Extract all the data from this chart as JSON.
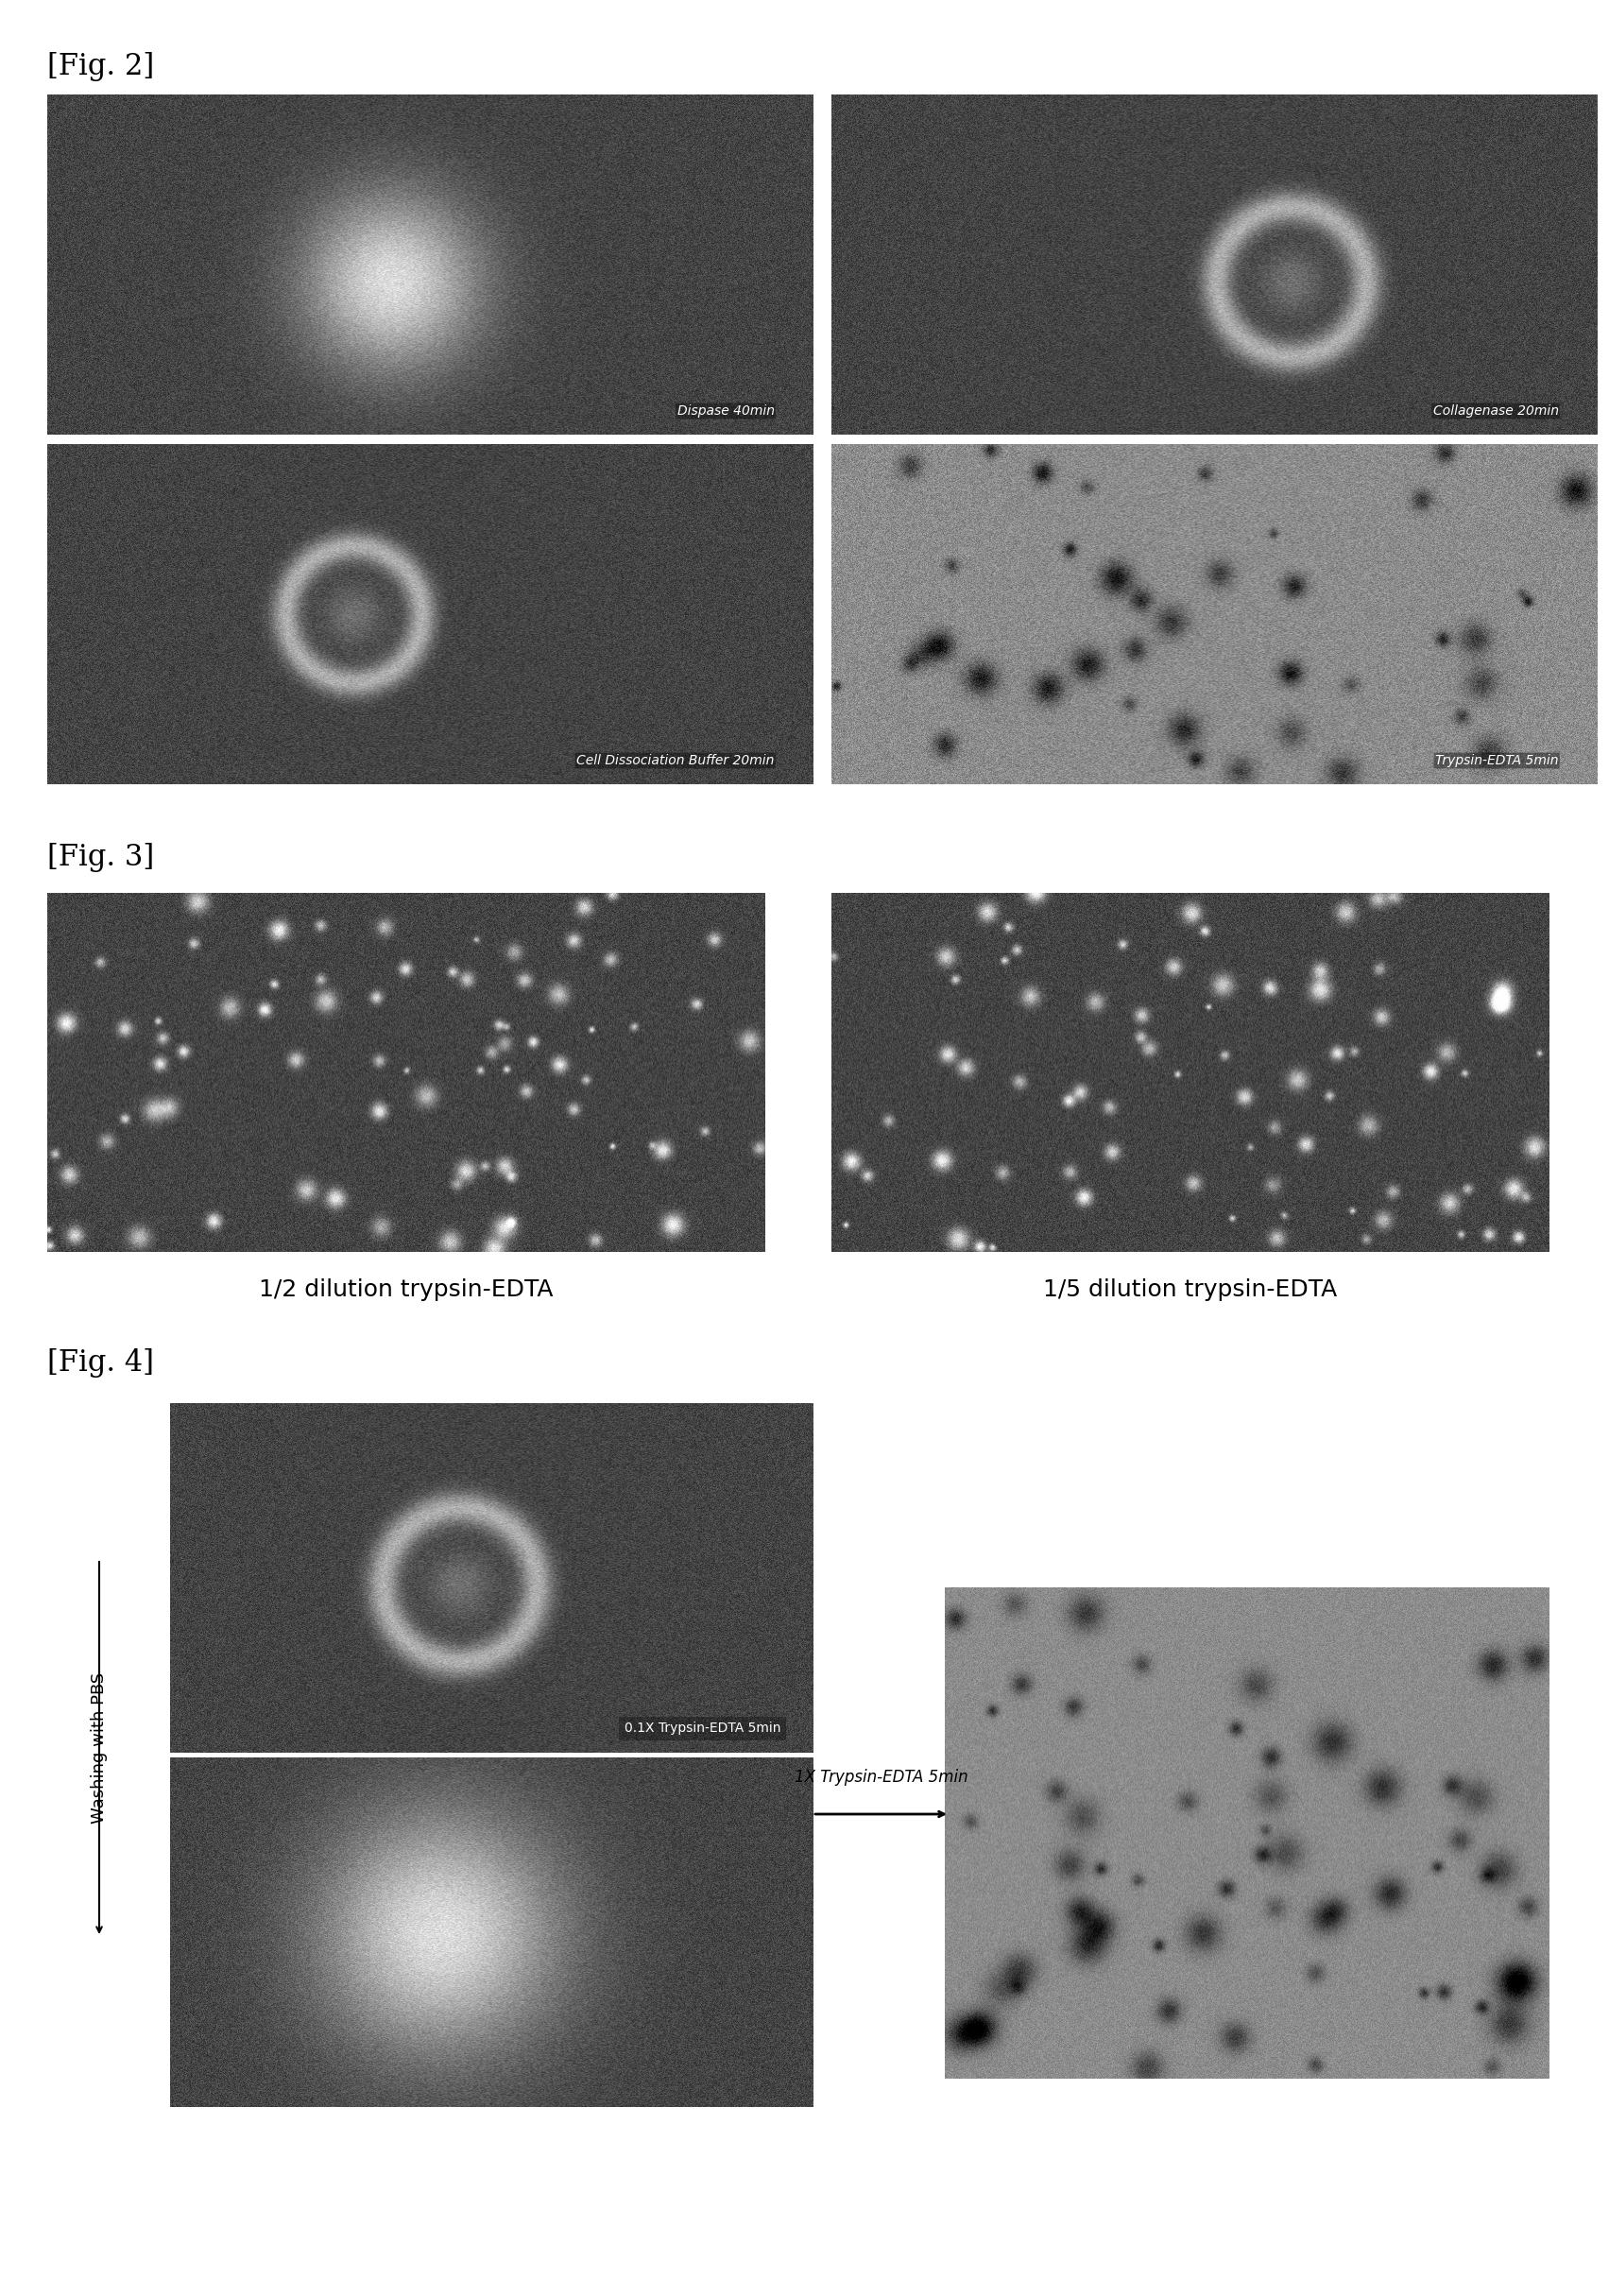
{
  "fig2_label": "[Fig. 2]",
  "fig3_label": "[Fig. 3]",
  "fig4_label": "[Fig. 4]",
  "fig2_captions": [
    "Dispase 40min",
    "Collagenase 20min",
    "Cell Dissociation Buffer 20min",
    "Trypsin-EDTA 5min"
  ],
  "fig3_caption_left": "1/2 dilution trypsin-EDTA",
  "fig3_caption_right": "1/5 dilution trypsin-EDTA",
  "fig4_label_pbs": "Washing with PBS",
  "fig4_caption_top": "0.1X Trypsin-EDTA 5min",
  "fig4_arrow_label": "1X Trypsin-EDTA 5min",
  "bg_color": "#ffffff",
  "img_bg_dark": "#3a3a3a",
  "img_bg_medium": "#5a5a5a",
  "img_bg_light": "#7a7a7a",
  "cell_color_bright": "#d0d0d0",
  "cell_color_mid": "#aaaaaa",
  "text_color_overlay": "#ffffff",
  "text_color_caption": "#000000",
  "text_color_label": "#000000"
}
